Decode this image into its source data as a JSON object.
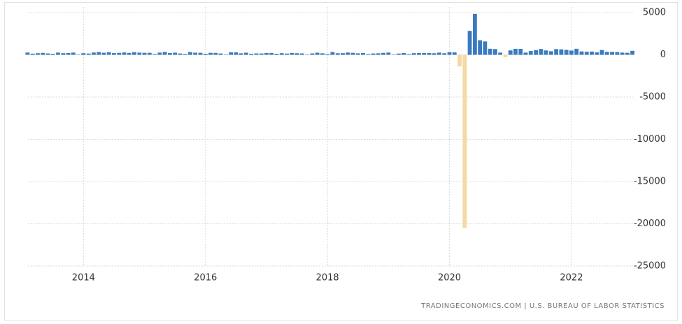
{
  "chart_data": {
    "type": "bar",
    "source": "TRADINGECONOMICS.COM | U.S. BUREAU OF LABOR STATISTICS",
    "x": [
      2013.083,
      2013.167,
      2013.25,
      2013.333,
      2013.417,
      2013.5,
      2013.583,
      2013.667,
      2013.75,
      2013.833,
      2013.917,
      2014.0,
      2014.083,
      2014.167,
      2014.25,
      2014.333,
      2014.417,
      2014.5,
      2014.583,
      2014.667,
      2014.75,
      2014.833,
      2014.917,
      2015.0,
      2015.083,
      2015.167,
      2015.25,
      2015.333,
      2015.417,
      2015.5,
      2015.583,
      2015.667,
      2015.75,
      2015.833,
      2015.917,
      2016.0,
      2016.083,
      2016.167,
      2016.25,
      2016.333,
      2016.417,
      2016.5,
      2016.583,
      2016.667,
      2016.75,
      2016.833,
      2016.917,
      2017.0,
      2017.083,
      2017.167,
      2017.25,
      2017.333,
      2017.417,
      2017.5,
      2017.583,
      2017.667,
      2017.75,
      2017.833,
      2017.917,
      2018.0,
      2018.083,
      2018.167,
      2018.25,
      2018.333,
      2018.417,
      2018.5,
      2018.583,
      2018.667,
      2018.75,
      2018.833,
      2018.917,
      2019.0,
      2019.083,
      2019.167,
      2019.25,
      2019.333,
      2019.417,
      2019.5,
      2019.583,
      2019.667,
      2019.75,
      2019.833,
      2019.917,
      2020.0,
      2020.083,
      2020.167,
      2020.25,
      2020.333,
      2020.417,
      2020.5,
      2020.583,
      2020.667,
      2020.75,
      2020.833,
      2020.917,
      2021.0,
      2021.083,
      2021.167,
      2021.25,
      2021.333,
      2021.417,
      2021.5,
      2021.583,
      2021.667,
      2021.75,
      2021.833,
      2021.917,
      2022.0,
      2022.083,
      2022.167,
      2022.25,
      2022.333,
      2022.417,
      2022.5,
      2022.583,
      2022.667,
      2022.75,
      2022.833,
      2022.917,
      2023.0
    ],
    "values": [
      268,
      138,
      188,
      226,
      162,
      122,
      261,
      190,
      212,
      258,
      47,
      190,
      151,
      272,
      329,
      246,
      304,
      202,
      230,
      280,
      227,
      312,
      255,
      234,
      238,
      86,
      262,
      344,
      206,
      254,
      157,
      100,
      321,
      252,
      239,
      126,
      237,
      225,
      153,
      43,
      297,
      291,
      176,
      249,
      124,
      164,
      155,
      216,
      219,
      124,
      191,
      145,
      221,
      187,
      165,
      14,
      166,
      249,
      176,
      94,
      330,
      182,
      196,
      270,
      235,
      173,
      211,
      83,
      160,
      176,
      227,
      269,
      1,
      147,
      210,
      85,
      194,
      207,
      207,
      208,
      185,
      261,
      184,
      315,
      289,
      -1373,
      -20477,
      2833,
      4846,
      1726,
      1583,
      716,
      680,
      263,
      -268,
      520,
      710,
      704,
      263,
      447,
      557,
      689,
      517,
      424,
      677,
      647,
      588,
      504,
      714,
      398,
      368,
      386,
      293,
      568,
      352,
      350,
      324,
      263,
      239,
      472
    ],
    "color": "#3a7bbf",
    "negative_color": "#f3d9a4",
    "xlim": [
      2013.09,
      2023.01
    ],
    "xticks": [
      2014,
      2016,
      2018,
      2020,
      2022
    ],
    "ylim": [
      -25000,
      5000
    ],
    "yticks": [
      5000,
      0,
      -5000,
      -10000,
      -15000,
      -20000,
      -25000
    ],
    "grid": true
  }
}
